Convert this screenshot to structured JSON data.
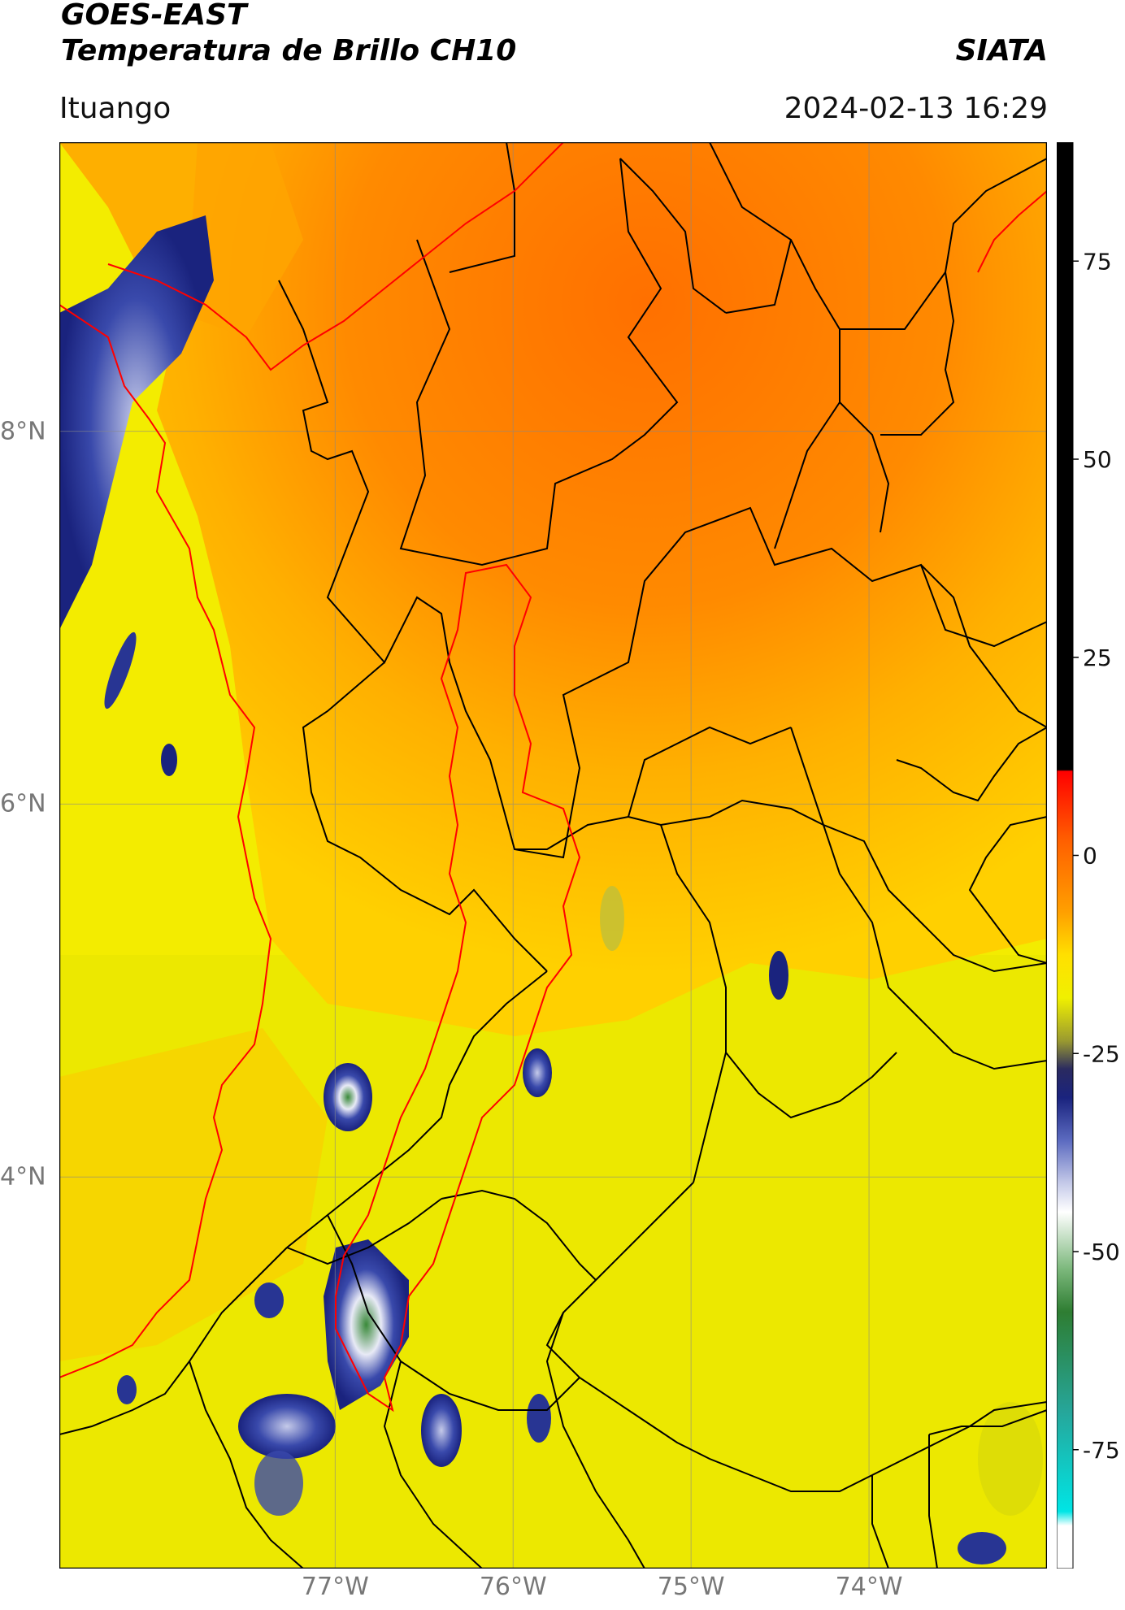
{
  "header": {
    "satellite": "GOES-EAST",
    "product": "Temperatura de Brillo CH10",
    "agency": "SIATA",
    "region": "Ituango",
    "timestamp": "2024-02-13 16:29"
  },
  "map": {
    "lon_range": [
      -78.55,
      -73.0
    ],
    "lat_range": [
      1.9,
      9.55
    ],
    "lon_ticks": [
      {
        "value": -77,
        "label": "77°W"
      },
      {
        "value": -76,
        "label": "76°W"
      },
      {
        "value": -75,
        "label": "75°W"
      },
      {
        "value": -74,
        "label": "74°W"
      }
    ],
    "lat_ticks": [
      {
        "value": 8,
        "label": "8°N"
      },
      {
        "value": 6,
        "label": "6°N"
      },
      {
        "value": 4,
        "label": "4°N"
      }
    ],
    "grid": true,
    "colors": {
      "warm_orange": "#ff7a00",
      "mid_orange": "#ffa500",
      "yellow": "#f5f000",
      "cloud_navy": "#1a237e",
      "cloud_white": "#e8eaf6",
      "cloud_green": "#3a8a3a",
      "border_black": "#000000",
      "coast_red": "#ff0000"
    }
  },
  "colorbar": {
    "range": [
      -90,
      90
    ],
    "ticks": [
      {
        "value": 75,
        "label": "75"
      },
      {
        "value": 50,
        "label": "50"
      },
      {
        "value": 25,
        "label": "25"
      },
      {
        "value": 0,
        "label": "0"
      },
      {
        "value": -25,
        "label": "-25"
      },
      {
        "value": -50,
        "label": "-50"
      },
      {
        "value": -75,
        "label": "-75"
      }
    ]
  }
}
